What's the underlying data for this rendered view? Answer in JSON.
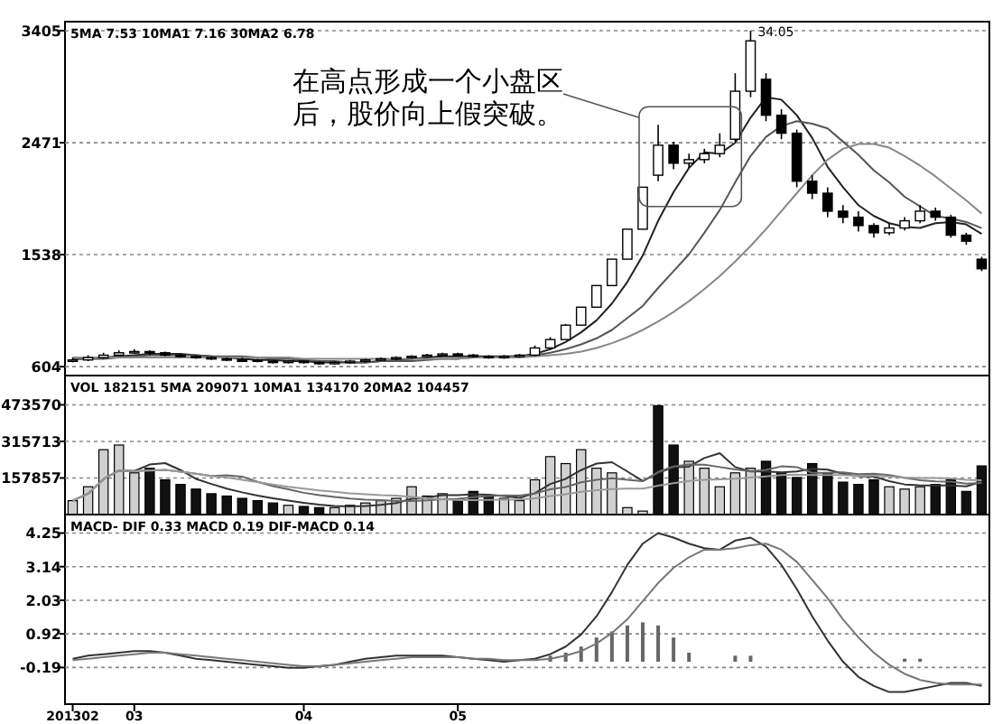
{
  "chart_data": [
    {
      "type": "candlestick",
      "tick_labels": "y",
      "grid": "y",
      "categories": [
        null,
        null,
        null,
        null,
        null,
        null,
        null,
        null,
        null,
        null,
        null,
        null,
        null,
        null,
        null,
        null,
        null,
        null,
        null,
        null,
        null,
        null,
        null,
        null,
        null,
        null,
        null,
        null,
        null,
        null,
        null,
        null,
        null,
        null,
        null,
        null,
        null,
        null,
        null,
        null,
        null,
        null,
        null,
        null,
        null,
        null,
        null,
        null,
        null,
        null,
        null,
        null,
        null,
        null,
        null,
        null,
        null,
        null,
        null,
        null
      ],
      "ylim": [
        530,
        3480
      ],
      "yticks": [
        604,
        1538,
        2471,
        3405
      ],
      "ohlc": [
        [
          650,
          680,
          640,
          660
        ],
        [
          660,
          700,
          650,
          680
        ],
        [
          680,
          720,
          670,
          700
        ],
        [
          700,
          740,
          690,
          720
        ],
        [
          720,
          750,
          710,
          730
        ],
        [
          730,
          740,
          700,
          720
        ],
        [
          720,
          730,
          690,
          700
        ],
        [
          700,
          710,
          680,
          690
        ],
        [
          690,
          700,
          670,
          680
        ],
        [
          680,
          690,
          660,
          670
        ],
        [
          670,
          680,
          650,
          660
        ],
        [
          660,
          680,
          650,
          660
        ],
        [
          660,
          670,
          640,
          650
        ],
        [
          650,
          660,
          630,
          640
        ],
        [
          640,
          660,
          630,
          650
        ],
        [
          650,
          660,
          630,
          640
        ],
        [
          640,
          650,
          620,
          630
        ],
        [
          630,
          650,
          620,
          640
        ],
        [
          640,
          660,
          630,
          650
        ],
        [
          650,
          670,
          640,
          660
        ],
        [
          660,
          680,
          650,
          670
        ],
        [
          670,
          690,
          660,
          680
        ],
        [
          680,
          700,
          670,
          690
        ],
        [
          690,
          710,
          680,
          700
        ],
        [
          700,
          720,
          690,
          710
        ],
        [
          710,
          720,
          690,
          700
        ],
        [
          700,
          710,
          680,
          690
        ],
        [
          690,
          700,
          670,
          680
        ],
        [
          680,
          700,
          670,
          690
        ],
        [
          690,
          710,
          680,
          700
        ],
        [
          700,
          780,
          690,
          760
        ],
        [
          760,
          850,
          750,
          830
        ],
        [
          830,
          960,
          830,
          950
        ],
        [
          950,
          1100,
          950,
          1100
        ],
        [
          1100,
          1280,
          1100,
          1280
        ],
        [
          1280,
          1500,
          1280,
          1500
        ],
        [
          1500,
          1750,
          1500,
          1750
        ],
        [
          1750,
          2100,
          1750,
          2100
        ],
        [
          2200,
          2620,
          2150,
          2450
        ],
        [
          2450,
          2480,
          2250,
          2300
        ],
        [
          2300,
          2380,
          2260,
          2330
        ],
        [
          2330,
          2420,
          2300,
          2380
        ],
        [
          2380,
          2550,
          2350,
          2450
        ],
        [
          2500,
          3050,
          2480,
          2900
        ],
        [
          2900,
          3405,
          2850,
          3320
        ],
        [
          3000,
          3050,
          2650,
          2700
        ],
        [
          2700,
          2750,
          2500,
          2550
        ],
        [
          2550,
          2580,
          2100,
          2150
        ],
        [
          2150,
          2200,
          2000,
          2050
        ],
        [
          2050,
          2100,
          1850,
          1900
        ],
        [
          1900,
          1950,
          1800,
          1850
        ],
        [
          1850,
          1900,
          1730,
          1780
        ],
        [
          1780,
          1800,
          1680,
          1720
        ],
        [
          1720,
          1800,
          1700,
          1760
        ],
        [
          1760,
          1850,
          1740,
          1820
        ],
        [
          1820,
          1950,
          1800,
          1900
        ],
        [
          1900,
          1930,
          1820,
          1850
        ],
        [
          1850,
          1870,
          1680,
          1700
        ],
        [
          1700,
          1720,
          1620,
          1650
        ],
        [
          1500,
          1520,
          1400,
          1420
        ]
      ],
      "colors": [
        "#ffffff",
        "#ffffff",
        "#ffffff",
        "#ffffff",
        "#ffffff",
        "#000000",
        "#000000",
        "#000000",
        "#000000",
        "#000000",
        "#000000",
        "#000000",
        "#000000",
        "#000000",
        "#ffffff",
        "#000000",
        "#000000",
        "#ffffff",
        "#ffffff",
        "#ffffff",
        "#ffffff",
        "#ffffff",
        "#ffffff",
        "#ffffff",
        "#ffffff",
        "#000000",
        "#000000",
        "#000000",
        "#ffffff",
        "#ffffff",
        "#ffffff",
        "#ffffff",
        "#ffffff",
        "#ffffff",
        "#ffffff",
        "#ffffff",
        "#ffffff",
        "#ffffff",
        "#ffffff",
        "#000000",
        "#ffffff",
        "#ffffff",
        "#ffffff",
        "#ffffff",
        "#ffffff",
        "#000000",
        "#000000",
        "#000000",
        "#000000",
        "#000000",
        "#000000",
        "#000000",
        "#000000",
        "#ffffff",
        "#ffffff",
        "#ffffff",
        "#000000",
        "#000000",
        "#000000",
        "#000000"
      ],
      "series": [
        {
          "type": "line",
          "color": "#222222",
          "values": [
            670,
            670,
            680,
            690,
            700,
            710,
            710,
            710,
            700,
            690,
            680,
            670,
            660,
            660,
            650,
            650,
            640,
            640,
            640,
            640,
            650,
            660,
            670,
            680,
            690,
            690,
            690,
            690,
            690,
            690,
            710,
            750,
            810,
            890,
            990,
            1130,
            1310,
            1530,
            1820,
            2060,
            2260,
            2390,
            2380,
            2470,
            2680,
            2850,
            2830,
            2700,
            2510,
            2270,
            2100,
            1950,
            1860,
            1800,
            1770,
            1760,
            1800,
            1810,
            1790,
            1710
          ]
        },
        {
          "type": "line",
          "color": "#555555",
          "values": [
            670,
            670,
            670,
            680,
            690,
            700,
            700,
            700,
            700,
            690,
            690,
            690,
            680,
            670,
            670,
            660,
            650,
            650,
            640,
            640,
            650,
            650,
            650,
            660,
            670,
            670,
            680,
            680,
            690,
            690,
            700,
            720,
            750,
            790,
            840,
            910,
            1010,
            1110,
            1260,
            1400,
            1540,
            1720,
            1910,
            2140,
            2360,
            2520,
            2610,
            2650,
            2630,
            2590,
            2480,
            2370,
            2240,
            2140,
            2020,
            1940,
            1860,
            1840,
            1810,
            1760
          ]
        },
        {
          "type": "line",
          "color": "#888888",
          "values": [
            680,
            680,
            680,
            680,
            680,
            680,
            680,
            680,
            680,
            680,
            680,
            680,
            680,
            680,
            680,
            670,
            670,
            670,
            670,
            670,
            670,
            670,
            670,
            670,
            670,
            670,
            680,
            680,
            680,
            680,
            690,
            700,
            710,
            730,
            760,
            800,
            850,
            910,
            980,
            1060,
            1150,
            1250,
            1360,
            1480,
            1610,
            1750,
            1900,
            2050,
            2200,
            2330,
            2420,
            2460,
            2460,
            2430,
            2360,
            2280,
            2190,
            2090,
            1990,
            1880
          ]
        }
      ],
      "annotations": [
        "5MA 7.53  10MA1 7.16  30MA2 6.78",
        "在高点形成一个小盘区后，股价向上假突破。",
        "34.05"
      ]
    },
    {
      "type": "bar",
      "tick_labels": "y",
      "grid": "y",
      "categories": [
        null,
        null,
        null,
        null,
        null,
        null,
        null,
        null,
        null,
        null,
        null,
        null,
        null,
        null,
        null,
        null,
        null,
        null,
        null,
        null,
        null,
        null,
        null,
        null,
        null,
        null,
        null,
        null,
        null,
        null,
        null,
        null,
        null,
        null,
        null,
        null,
        null,
        null,
        null,
        null,
        null,
        null,
        null,
        null,
        null,
        null,
        null,
        null,
        null,
        null,
        null,
        null,
        null,
        null,
        null,
        null,
        null,
        null,
        null,
        null
      ],
      "ylim": [
        0,
        600000
      ],
      "yticks": [
        157857,
        315713,
        473570
      ],
      "series": [
        {
          "type": "bar",
          "values": [
            60000,
            120000,
            280000,
            300000,
            180000,
            200000,
            150000,
            130000,
            110000,
            90000,
            80000,
            70000,
            60000,
            50000,
            40000,
            35000,
            30000,
            30000,
            40000,
            50000,
            60000,
            70000,
            120000,
            80000,
            90000,
            60000,
            100000,
            80000,
            70000,
            60000,
            150000,
            250000,
            220000,
            280000,
            200000,
            180000,
            30000,
            15000,
            470000,
            300000,
            230000,
            200000,
            120000,
            180000,
            200000,
            230000,
            180000,
            160000,
            220000,
            180000,
            140000,
            130000,
            150000,
            120000,
            110000,
            120000,
            130000,
            150000,
            100000,
            210000
          ],
          "colors": [
            "#d0d0d0",
            "#d0d0d0",
            "#d0d0d0",
            "#d0d0d0",
            "#d0d0d0",
            "#111111",
            "#111111",
            "#111111",
            "#111111",
            "#111111",
            "#111111",
            "#111111",
            "#111111",
            "#111111",
            "#d0d0d0",
            "#111111",
            "#111111",
            "#d0d0d0",
            "#d0d0d0",
            "#d0d0d0",
            "#d0d0d0",
            "#d0d0d0",
            "#d0d0d0",
            "#d0d0d0",
            "#d0d0d0",
            "#111111",
            "#111111",
            "#111111",
            "#d0d0d0",
            "#d0d0d0",
            "#d0d0d0",
            "#d0d0d0",
            "#d0d0d0",
            "#d0d0d0",
            "#d0d0d0",
            "#d0d0d0",
            "#d0d0d0",
            "#d0d0d0",
            "#111111",
            "#111111",
            "#d0d0d0",
            "#d0d0d0",
            "#d0d0d0",
            "#d0d0d0",
            "#d0d0d0",
            "#111111",
            "#111111",
            "#111111",
            "#111111",
            "#111111",
            "#111111",
            "#111111",
            "#111111",
            "#d0d0d0",
            "#d0d0d0",
            "#d0d0d0",
            "#111111",
            "#111111",
            "#111111",
            "#111111"
          ]
        },
        {
          "type": "line",
          "color": "#333333",
          "values": [
            60000,
            90000,
            153000,
            190000,
            188000,
            216000,
            222000,
            192000,
            154000,
            132000,
            112000,
            96000,
            82000,
            70000,
            60000,
            51000,
            43000,
            37000,
            35000,
            37000,
            42000,
            50000,
            68000,
            74000,
            84000,
            84000,
            88000,
            86000,
            80000,
            72000,
            92000,
            132000,
            154000,
            192000,
            220000,
            226000,
            186000,
            145000,
            180000,
            204000,
            207000,
            244000,
            265000,
            205000,
            186000,
            186000,
            182000,
            186000,
            198000,
            194000,
            176000,
            166000,
            164000,
            144000,
            130000,
            126000,
            126000,
            126000,
            122000,
            142000
          ]
        },
        {
          "type": "line",
          "color": "#666666",
          "values": [
            60000,
            90000,
            153000,
            190000,
            188000,
            190000,
            193000,
            185000,
            176000,
            167000,
            169000,
            164000,
            141000,
            123000,
            109000,
            94000,
            84000,
            76000,
            69000,
            64000,
            62000,
            58000,
            58000,
            61000,
            66000,
            68000,
            75000,
            80000,
            83000,
            82000,
            91000,
            109000,
            119000,
            139000,
            150000,
            157000,
            150000,
            144000,
            184000,
            208000,
            216000,
            215000,
            205000,
            195000,
            187000,
            193000,
            208000,
            205000,
            180000,
            180000,
            182000,
            174000,
            176000,
            170000,
            159000,
            148000,
            143000,
            142000,
            133000,
            136000
          ]
        },
        {
          "type": "line",
          "color": "#999999",
          "values": [
            60000,
            90000,
            153000,
            190000,
            188000,
            190000,
            193000,
            185000,
            176000,
            167000,
            160000,
            150000,
            140000,
            130000,
            120000,
            112000,
            104000,
            98000,
            92000,
            88000,
            84000,
            82000,
            76000,
            70000,
            66000,
            62000,
            62000,
            63000,
            64000,
            65000,
            70000,
            80000,
            88000,
            98000,
            105000,
            110000,
            112000,
            112000,
            125000,
            135000,
            145000,
            150000,
            152000,
            155000,
            160000,
            165000,
            170000,
            172000,
            170000,
            170000,
            170000,
            168000,
            168000,
            165000,
            160000,
            158000,
            158000,
            156000,
            150000,
            148000
          ]
        }
      ],
      "annotations": [
        "VOL 182151  5MA 209071  10MA1 134170  20MA2 104457"
      ]
    },
    {
      "type": "line",
      "grid": "y",
      "categories": [
        "201302",
        null,
        null,
        null,
        "03",
        null,
        null,
        null,
        null,
        null,
        null,
        null,
        null,
        null,
        null,
        "04",
        null,
        null,
        null,
        null,
        null,
        null,
        null,
        null,
        null,
        "05",
        null,
        null,
        null,
        null,
        null,
        null,
        null,
        null,
        null,
        null,
        null,
        null,
        null,
        null,
        null,
        null,
        null,
        null,
        null,
        null,
        null,
        null,
        null,
        null,
        null,
        null,
        null,
        null,
        null,
        null,
        null,
        null,
        null,
        null
      ],
      "ylim": [
        -1.4,
        4.86
      ],
      "yticks": [
        -0.19,
        0.92,
        2.03,
        3.14,
        4.25
      ],
      "series": [
        {
          "type": "bar",
          "color": "#666666",
          "values": [
            null,
            null,
            null,
            null,
            null,
            null,
            null,
            null,
            null,
            null,
            null,
            null,
            null,
            null,
            null,
            null,
            null,
            null,
            null,
            null,
            null,
            null,
            null,
            null,
            null,
            null,
            null,
            null,
            null,
            null,
            null,
            0.2,
            0.3,
            0.5,
            0.8,
            1.0,
            1.2,
            1.3,
            1.2,
            0.8,
            0.3,
            null,
            null,
            0.2,
            0.2,
            null,
            null,
            null,
            null,
            null,
            null,
            null,
            null,
            null,
            0.1,
            0.1,
            null,
            null,
            null,
            null
          ]
        },
        {
          "type": "line",
          "color": "#333333",
          "values": [
            0.1,
            0.2,
            0.25,
            0.3,
            0.35,
            0.35,
            0.3,
            0.2,
            0.1,
            0.05,
            0,
            -0.05,
            -0.1,
            -0.15,
            -0.2,
            -0.2,
            -0.15,
            -0.1,
            0,
            0.1,
            0.15,
            0.2,
            0.2,
            0.2,
            0.2,
            0.15,
            0.1,
            0.05,
            0,
            0.05,
            0.1,
            0.25,
            0.5,
            0.9,
            1.5,
            2.3,
            3.2,
            3.9,
            4.25,
            4.1,
            3.9,
            3.75,
            3.7,
            4.0,
            4.1,
            3.8,
            3.2,
            2.4,
            1.5,
            0.7,
            0,
            -0.5,
            -0.8,
            -1.0,
            -1.0,
            -0.9,
            -0.8,
            -0.7,
            -0.7,
            -0.8
          ]
        },
        {
          "type": "line",
          "color": "#777777",
          "values": [
            0.05,
            0.1,
            0.15,
            0.2,
            0.25,
            0.3,
            0.3,
            0.25,
            0.2,
            0.15,
            0.1,
            0.05,
            0,
            -0.05,
            -0.1,
            -0.15,
            -0.15,
            -0.1,
            -0.05,
            0,
            0.05,
            0.1,
            0.15,
            0.15,
            0.15,
            0.15,
            0.1,
            0.1,
            0.05,
            0.05,
            0.05,
            0.1,
            0.2,
            0.35,
            0.6,
            0.95,
            1.4,
            2.0,
            2.6,
            3.1,
            3.45,
            3.7,
            3.7,
            3.75,
            3.85,
            3.9,
            3.7,
            3.3,
            2.7,
            2.1,
            1.4,
            0.8,
            0.3,
            -0.1,
            -0.4,
            -0.6,
            -0.7,
            -0.75,
            -0.75,
            -0.75
          ]
        }
      ],
      "annotations": [
        "MACD- DIF 0.33  MACD 0.19  DIF-MACD 0.14"
      ]
    }
  ]
}
